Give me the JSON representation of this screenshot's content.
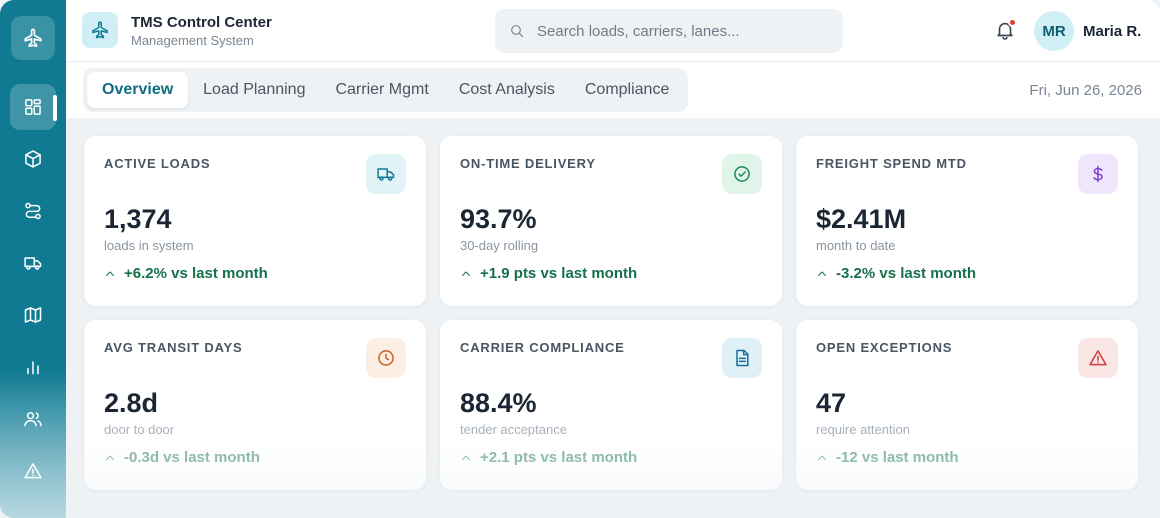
{
  "app": {
    "title": "TMS Control Center",
    "subtitle": "Management System"
  },
  "search": {
    "placeholder": "Search loads, carriers, lanes..."
  },
  "user": {
    "initials": "MR",
    "name": "Maria R."
  },
  "notifications": {
    "icon": "bell-icon",
    "has_unread": true
  },
  "sidebar": {
    "items": [
      {
        "name": "dashboard",
        "icon": "grid-icon",
        "active": true
      },
      {
        "name": "loads",
        "icon": "box-icon",
        "active": false
      },
      {
        "name": "routes",
        "icon": "route-icon",
        "active": false
      },
      {
        "name": "carriers",
        "icon": "truck-icon",
        "active": false
      },
      {
        "name": "map",
        "icon": "map-icon",
        "active": false
      },
      {
        "name": "analytics",
        "icon": "bar-chart-icon",
        "active": false
      },
      {
        "name": "users",
        "icon": "users-icon",
        "active": false
      },
      {
        "name": "alerts",
        "icon": "alert-triangle-icon",
        "active": false
      }
    ]
  },
  "tabs": [
    {
      "label": "Overview",
      "active": true
    },
    {
      "label": "Load Planning",
      "active": false
    },
    {
      "label": "Carrier Mgmt",
      "active": false
    },
    {
      "label": "Cost Analysis",
      "active": false
    },
    {
      "label": "Compliance",
      "active": false
    }
  ],
  "date": "Fri, Jun 26, 2026",
  "cards": [
    {
      "label": "ACTIVE LOADS",
      "value": "1,374",
      "sub": "loads in system",
      "trend": "+6.2% vs last month",
      "icon": "truck-icon",
      "icon_bg": "#e0f3f7",
      "icon_color": "#0f7a92"
    },
    {
      "label": "ON-TIME DELIVERY",
      "value": "93.7%",
      "sub": "30-day rolling",
      "trend": "+1.9 pts vs last month",
      "icon": "check-circle-icon",
      "icon_bg": "#e1f4ea",
      "icon_color": "#1f8a55"
    },
    {
      "label": "FREIGHT SPEND MTD",
      "value": "$2.41M",
      "sub": "month to date",
      "trend": "-3.2% vs last month",
      "icon": "dollar-icon",
      "icon_bg": "#efe6fb",
      "icon_color": "#7a3fd1"
    },
    {
      "label": "AVG TRANSIT DAYS",
      "value": "2.8d",
      "sub": "door to door",
      "trend": "-0.3d vs last month",
      "icon": "clock-icon",
      "icon_bg": "#fdeee3",
      "icon_color": "#c7621f"
    },
    {
      "label": "CARRIER COMPLIANCE",
      "value": "88.4%",
      "sub": "tender acceptance",
      "trend": "+2.1 pts vs last month",
      "icon": "document-icon",
      "icon_bg": "#e0f0f7",
      "icon_color": "#13709a"
    },
    {
      "label": "OPEN EXCEPTIONS",
      "value": "47",
      "sub": "require attention",
      "trend": "-12 vs last month",
      "icon": "alert-triangle-icon",
      "icon_bg": "#fbe6e6",
      "icon_color": "#cf3a3a"
    }
  ]
}
